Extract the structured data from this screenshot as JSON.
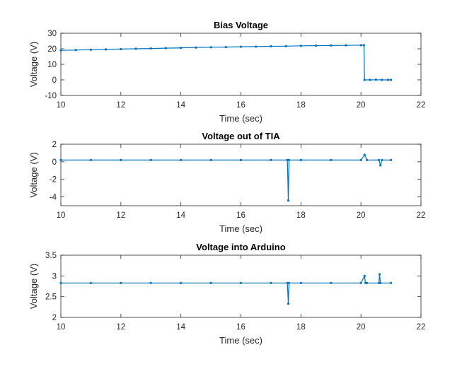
{
  "chart_data": [
    {
      "type": "line",
      "title": "Bias Voltage",
      "xlabel": "Time (sec)",
      "ylabel": "Voltage (V)",
      "xlim": [
        10,
        22
      ],
      "ylim": [
        -10,
        30
      ],
      "xticks": [
        10,
        12,
        14,
        16,
        18,
        20,
        22
      ],
      "yticks": [
        -10,
        0,
        10,
        20,
        30
      ],
      "grid": false,
      "series_color": "#0072BD",
      "series": [
        {
          "x": [
            10.0,
            10.5,
            11.0,
            11.5,
            12.0,
            12.5,
            13.0,
            13.5,
            14.0,
            14.5,
            15.0,
            15.5,
            16.0,
            16.5,
            17.0,
            17.5,
            18.0,
            18.5,
            19.0,
            19.5,
            20.0,
            20.1,
            20.12,
            20.3,
            20.5,
            20.7,
            20.9,
            21.0
          ],
          "y": [
            19.0,
            19.2,
            19.4,
            19.6,
            19.8,
            20.0,
            20.2,
            20.4,
            20.6,
            20.8,
            21.0,
            21.1,
            21.3,
            21.4,
            21.6,
            21.7,
            21.9,
            22.0,
            22.1,
            22.2,
            22.3,
            22.3,
            0.0,
            0.0,
            0.1,
            0.0,
            0.0,
            0.0
          ]
        }
      ]
    },
    {
      "type": "line",
      "title": "Voltage out of TIA",
      "xlabel": "Time (sec)",
      "ylabel": "Voltage (V)",
      "xlim": [
        10,
        22
      ],
      "ylim": [
        -5,
        2
      ],
      "xticks": [
        10,
        12,
        14,
        16,
        18,
        20,
        22
      ],
      "yticks": [
        -4,
        -2,
        0,
        2
      ],
      "grid": false,
      "series_color": "#0072BD",
      "series": [
        {
          "x": [
            10.0,
            11.0,
            12.0,
            13.0,
            14.0,
            15.0,
            16.0,
            17.0,
            17.55,
            17.58,
            17.6,
            18.0,
            19.0,
            20.0,
            20.12,
            20.2,
            20.6,
            20.65,
            20.7,
            21.0
          ],
          "y": [
            0.2,
            0.2,
            0.2,
            0.2,
            0.2,
            0.2,
            0.2,
            0.2,
            0.2,
            -4.4,
            0.2,
            0.2,
            0.2,
            0.2,
            0.8,
            0.2,
            0.2,
            -0.4,
            0.2,
            0.2
          ]
        }
      ]
    },
    {
      "type": "line",
      "title": "Voltage into Arduino",
      "xlabel": "Time (sec)",
      "ylabel": "Voltage (V)",
      "xlim": [
        10,
        22
      ],
      "ylim": [
        2,
        3.5
      ],
      "xticks": [
        10,
        12,
        14,
        16,
        18,
        20,
        22
      ],
      "yticks": [
        2,
        2.5,
        3,
        3.5
      ],
      "grid": false,
      "series_color": "#0072BD",
      "series": [
        {
          "x": [
            10.0,
            11.0,
            12.0,
            13.0,
            14.0,
            15.0,
            16.0,
            17.0,
            17.55,
            17.58,
            17.6,
            18.0,
            19.0,
            20.0,
            20.12,
            20.15,
            20.2,
            20.6,
            20.62,
            20.65,
            21.0
          ],
          "y": [
            2.83,
            2.83,
            2.83,
            2.83,
            2.83,
            2.83,
            2.83,
            2.83,
            2.83,
            2.33,
            2.83,
            2.83,
            2.83,
            2.83,
            3.0,
            2.83,
            2.83,
            2.83,
            3.04,
            2.83,
            2.83
          ]
        }
      ]
    }
  ]
}
